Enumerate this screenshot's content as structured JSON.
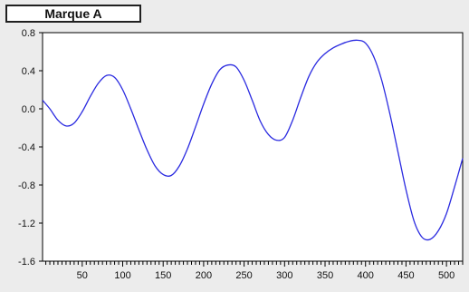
{
  "title": "Marque A",
  "colors": {
    "background": "#ececec",
    "plot_area": "#ffffff",
    "line": "#2a2ae0",
    "axis": "#000000"
  },
  "chart_data": {
    "type": "line",
    "title": "Marque A",
    "xlabel": "",
    "ylabel": "",
    "xlim": [
      1,
      520
    ],
    "ylim": [
      -1.6,
      0.8
    ],
    "xticks": [
      50,
      100,
      150,
      200,
      250,
      300,
      350,
      400,
      450,
      500
    ],
    "xtick_labels": [
      "50",
      "100",
      "150",
      "200",
      "250",
      "300",
      "350",
      "400",
      "450",
      "500"
    ],
    "yticks": [
      0.8,
      0.4,
      0.0,
      -0.4,
      -0.8,
      -1.2,
      -1.6
    ],
    "ytick_labels": [
      "0.8",
      "0.4",
      "0.0",
      "-0.4",
      "-0.8",
      "-1.2",
      "-1.6"
    ],
    "grid": false,
    "legend": "none",
    "series": [
      {
        "color": "#2a2ae0",
        "x": [
          1,
          10,
          20,
          30,
          40,
          50,
          60,
          70,
          80,
          90,
          100,
          110,
          120,
          130,
          140,
          150,
          160,
          170,
          180,
          190,
          200,
          210,
          220,
          230,
          240,
          250,
          260,
          270,
          280,
          290,
          300,
          310,
          320,
          330,
          340,
          350,
          360,
          370,
          380,
          390,
          400,
          410,
          420,
          430,
          440,
          450,
          460,
          470,
          480,
          490,
          500,
          510,
          520
        ],
        "y": [
          0.09,
          0.0,
          -0.12,
          -0.18,
          -0.15,
          -0.03,
          0.13,
          0.27,
          0.35,
          0.33,
          0.2,
          0.0,
          -0.22,
          -0.43,
          -0.6,
          -0.69,
          -0.7,
          -0.6,
          -0.42,
          -0.19,
          0.05,
          0.26,
          0.41,
          0.46,
          0.44,
          0.3,
          0.09,
          -0.13,
          -0.27,
          -0.33,
          -0.3,
          -0.12,
          0.12,
          0.34,
          0.49,
          0.58,
          0.64,
          0.68,
          0.71,
          0.72,
          0.69,
          0.55,
          0.3,
          -0.05,
          -0.45,
          -0.85,
          -1.18,
          -1.35,
          -1.37,
          -1.28,
          -1.1,
          -0.82,
          -0.52
        ]
      }
    ]
  }
}
